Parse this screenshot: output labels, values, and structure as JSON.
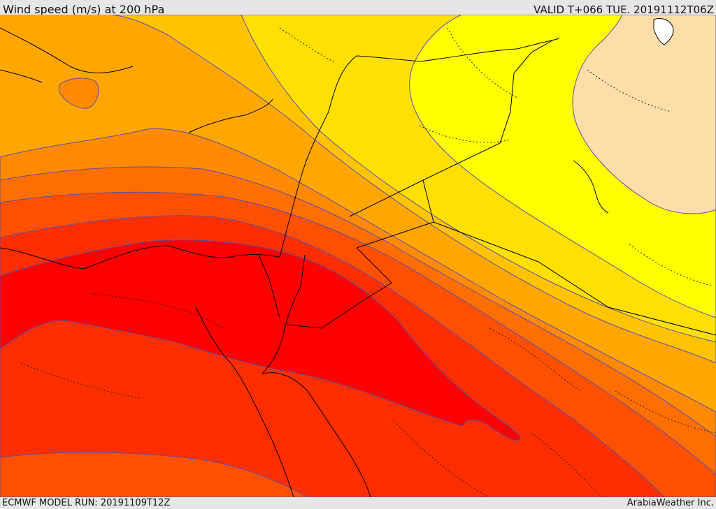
{
  "header": {
    "title": "Wind speed (m/s) at 200 hPa",
    "valid_time": "VALID T+066 TUE. 20191112T06Z"
  },
  "footer": {
    "model_run": "ECMWF MODEL RUN: 20191109T12Z",
    "credit": "ArabiaWeather Inc."
  },
  "map": {
    "variable": "wind speed",
    "level_hpa": 200,
    "units": "m/s",
    "colors": {
      "lightest": "#fddea8",
      "yellow": "#ffff00",
      "yellow_gold": "#ffe000",
      "gold": "#ffc300",
      "light_orange": "#ffa600",
      "orange": "#ff8a00",
      "dark_orange": "#ff6e00",
      "red_orange": "#ff5000",
      "red": "#ff2e00",
      "deep_red": "#ff0000",
      "contour_line": "#5a4fa6",
      "border_line": "#000000"
    }
  }
}
